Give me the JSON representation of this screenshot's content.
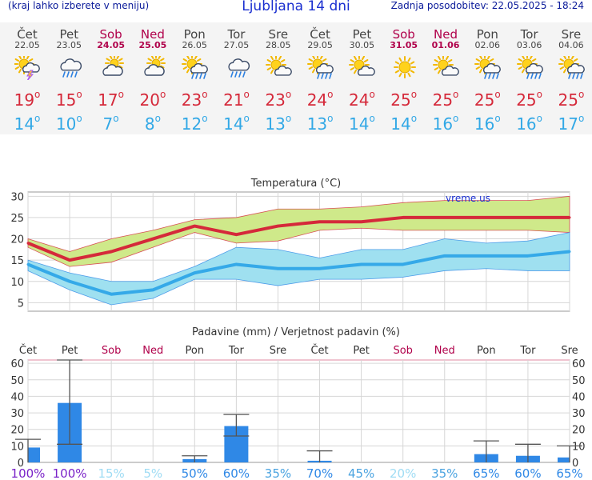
{
  "header": {
    "left_note": "(kraj lahko izberete v meniju)",
    "title": "Ljubljana 14 dni",
    "updated": "Zadnja posodobitev: 22.05.2025 - 18:24"
  },
  "days": [
    {
      "name": "Čet",
      "date": "22.05",
      "weekend": false,
      "icon": "thunderstorm-icon",
      "max": "19",
      "min": "14"
    },
    {
      "name": "Pet",
      "date": "23.05",
      "weekend": false,
      "icon": "cloud-rain-icon",
      "max": "15",
      "min": "10"
    },
    {
      "name": "Sob",
      "date": "24.05",
      "weekend": true,
      "icon": "partly-cloudy-icon",
      "max": "17",
      "min": "7"
    },
    {
      "name": "Ned",
      "date": "25.05",
      "weekend": true,
      "icon": "partly-cloudy-icon",
      "max": "20",
      "min": "8"
    },
    {
      "name": "Pon",
      "date": "26.05",
      "weekend": false,
      "icon": "sun-cloud-rain-icon",
      "max": "23",
      "min": "12"
    },
    {
      "name": "Tor",
      "date": "27.05",
      "weekend": false,
      "icon": "cloud-rain-icon",
      "max": "21",
      "min": "14"
    },
    {
      "name": "Sre",
      "date": "28.05",
      "weekend": false,
      "icon": "sun-cloud-icon",
      "max": "23",
      "min": "13"
    },
    {
      "name": "Čet",
      "date": "29.05",
      "weekend": false,
      "icon": "sun-cloud-rain-icon",
      "max": "24",
      "min": "13"
    },
    {
      "name": "Pet",
      "date": "30.05",
      "weekend": false,
      "icon": "sun-cloud-icon",
      "max": "24",
      "min": "14"
    },
    {
      "name": "Sob",
      "date": "31.05",
      "weekend": true,
      "icon": "sun-icon",
      "max": "25",
      "min": "14"
    },
    {
      "name": "Ned",
      "date": "01.06",
      "weekend": true,
      "icon": "sun-cloud-icon",
      "max": "25",
      "min": "16"
    },
    {
      "name": "Pon",
      "date": "02.06",
      "weekend": false,
      "icon": "sun-cloud-rain-icon",
      "max": "25",
      "min": "16"
    },
    {
      "name": "Tor",
      "date": "03.06",
      "weekend": false,
      "icon": "sun-cloud-rain-icon",
      "max": "25",
      "min": "16"
    },
    {
      "name": "Sre",
      "date": "04.06",
      "weekend": false,
      "icon": "sun-cloud-rain-icon",
      "max": "25",
      "min": "17"
    }
  ],
  "colors": {
    "max_line": "#d5293a",
    "max_band": "#cfe98a",
    "min_line": "#35a9e8",
    "min_band": "#9fe0f0",
    "bar": "#2f88e6",
    "weekend": "#b0004a"
  },
  "chart_data": [
    {
      "type": "line",
      "title": "Temperatura (°C)",
      "watermark": "vreme.us",
      "x": [
        "22.05",
        "23.05",
        "24.05",
        "25.05",
        "26.05",
        "27.05",
        "28.05",
        "29.05",
        "30.05",
        "31.05",
        "01.06",
        "02.06",
        "03.06",
        "04.06"
      ],
      "ylim": [
        3,
        31
      ],
      "yticks": [
        5,
        10,
        15,
        20,
        25,
        30
      ],
      "series": [
        {
          "values": [
            19,
            15,
            17,
            20,
            23,
            21,
            23,
            24,
            24,
            25,
            25,
            25,
            25,
            25
          ],
          "band_low": [
            18,
            13.5,
            14.5,
            18,
            21.5,
            19,
            19.5,
            22,
            22.5,
            22,
            22,
            22,
            22,
            21.5
          ],
          "band_high": [
            20,
            17,
            20,
            22,
            24.5,
            25,
            27,
            27,
            27.5,
            28.5,
            29,
            29,
            29,
            30
          ]
        },
        {
          "values": [
            14,
            10,
            7,
            8,
            12,
            14,
            13,
            13,
            14,
            14,
            16,
            16,
            16,
            17
          ],
          "band_low": [
            12.5,
            8,
            4.5,
            6,
            10.5,
            10.5,
            9,
            10.5,
            10.5,
            11,
            12.5,
            13,
            12.5,
            12.5
          ],
          "band_high": [
            15,
            12,
            10,
            10,
            13.5,
            18,
            17.5,
            15.5,
            17.5,
            17.5,
            20,
            19,
            19.5,
            21.5
          ]
        }
      ]
    },
    {
      "type": "bar",
      "title": "Padavine (mm) / Verjetnost padavin (%)",
      "categories": [
        "Čet",
        "Pet",
        "Sob",
        "Ned",
        "Pon",
        "Tor",
        "Sre",
        "Čet",
        "Pet",
        "Sob",
        "Ned",
        "Pon",
        "Tor",
        "Sre"
      ],
      "weekend": [
        false,
        false,
        true,
        true,
        false,
        false,
        false,
        false,
        false,
        true,
        true,
        false,
        false,
        false
      ],
      "values": [
        9,
        36,
        0,
        0,
        2,
        22,
        0,
        1,
        0,
        0,
        0,
        5,
        4,
        3
      ],
      "err_low": [
        0,
        11,
        0,
        0,
        0,
        16,
        0,
        0,
        0,
        0,
        0,
        0,
        0,
        0
      ],
      "err_high": [
        14,
        62,
        0,
        0,
        4,
        29,
        0,
        7,
        0,
        0,
        0,
        13,
        11,
        10
      ],
      "ylim": [
        0,
        62
      ],
      "yticks": [
        0,
        10,
        20,
        30,
        40,
        50,
        60
      ],
      "probability": [
        "100%",
        "100%",
        "15%",
        "5%",
        "50%",
        "60%",
        "35%",
        "70%",
        "45%",
        "20%",
        "35%",
        "65%",
        "60%",
        "65%"
      ],
      "probability_colors": [
        "#7a22c8",
        "#7a22c8",
        "#9fdcf4",
        "#9fdcf4",
        "#2f88e6",
        "#2f88e6",
        "#4aa3e0",
        "#2f88e6",
        "#4aa3e0",
        "#9fdcf4",
        "#4aa3e0",
        "#2f88e6",
        "#2f88e6",
        "#2f88e6"
      ]
    }
  ]
}
